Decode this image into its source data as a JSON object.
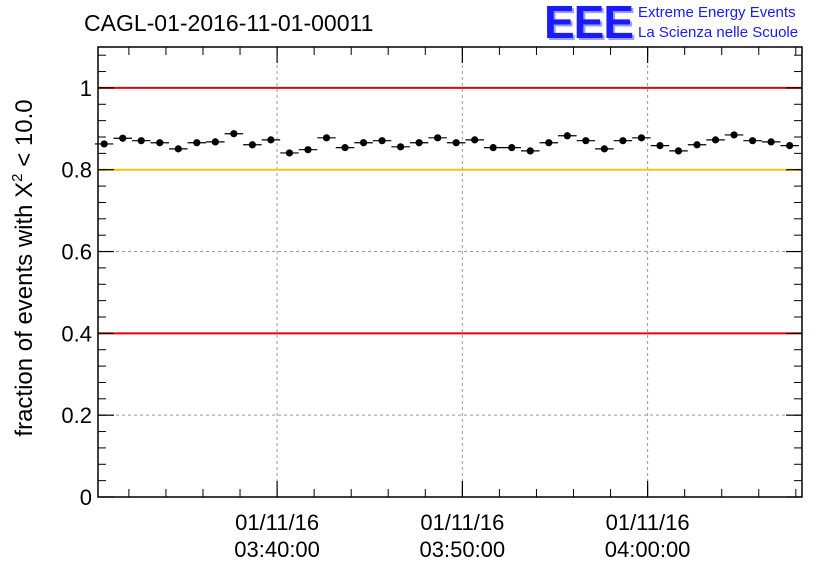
{
  "header": {
    "run_title": "CAGL-01-2016-11-01-00011",
    "logo": {
      "mark": "EEE",
      "line1": "Extreme Energy Events",
      "line2": "La Scienza nelle Scuole",
      "color": "#1a1aff"
    }
  },
  "chart_data": {
    "type": "scatter",
    "title": "CAGL-01-2016-11-01-00011",
    "xlabel": "",
    "ylabel": "fraction of events with X² < 10.0",
    "ylabel_parts": {
      "pre": "fraction of events with X",
      "sup": "2",
      "post": " < 10.0"
    },
    "x_axis": {
      "type": "time",
      "range": [
        "03:30:20",
        "04:08:20"
      ],
      "tick_labels": [
        {
          "time": "03:40:00",
          "date": "01/11/16"
        },
        {
          "time": "03:50:00",
          "date": "01/11/16"
        },
        {
          "time": "04:00:00",
          "date": "01/11/16"
        }
      ]
    },
    "ylim": [
      0,
      1.1
    ],
    "y_ticks": [
      "0",
      "0.2",
      "0.4",
      "0.6",
      "0.8",
      "1"
    ],
    "grid": true,
    "reference_lines": [
      {
        "y": 1.0,
        "color": "#e8000b"
      },
      {
        "y": 0.8,
        "color": "#ffc400"
      },
      {
        "y": 0.4,
        "color": "#e8000b"
      }
    ],
    "series": [
      {
        "marker_color": "#000000",
        "points": [
          {
            "x": "03:30:40",
            "y": 0.863
          },
          {
            "x": "03:31:40",
            "y": 0.877
          },
          {
            "x": "03:32:40",
            "y": 0.871
          },
          {
            "x": "03:33:40",
            "y": 0.866
          },
          {
            "x": "03:34:40",
            "y": 0.851
          },
          {
            "x": "03:35:40",
            "y": 0.866
          },
          {
            "x": "03:36:40",
            "y": 0.868
          },
          {
            "x": "03:37:40",
            "y": 0.888
          },
          {
            "x": "03:38:40",
            "y": 0.861
          },
          {
            "x": "03:39:40",
            "y": 0.873
          },
          {
            "x": "03:40:40",
            "y": 0.841
          },
          {
            "x": "03:41:40",
            "y": 0.849
          },
          {
            "x": "03:42:40",
            "y": 0.878
          },
          {
            "x": "03:43:40",
            "y": 0.854
          },
          {
            "x": "03:44:40",
            "y": 0.866
          },
          {
            "x": "03:45:40",
            "y": 0.871
          },
          {
            "x": "03:46:40",
            "y": 0.856
          },
          {
            "x": "03:47:40",
            "y": 0.866
          },
          {
            "x": "03:48:40",
            "y": 0.878
          },
          {
            "x": "03:49:40",
            "y": 0.866
          },
          {
            "x": "03:50:40",
            "y": 0.873
          },
          {
            "x": "03:51:40",
            "y": 0.854
          },
          {
            "x": "03:52:40",
            "y": 0.854
          },
          {
            "x": "03:53:40",
            "y": 0.846
          },
          {
            "x": "03:54:40",
            "y": 0.866
          },
          {
            "x": "03:55:40",
            "y": 0.883
          },
          {
            "x": "03:56:40",
            "y": 0.871
          },
          {
            "x": "03:57:40",
            "y": 0.851
          },
          {
            "x": "03:58:40",
            "y": 0.871
          },
          {
            "x": "03:59:40",
            "y": 0.878
          },
          {
            "x": "04:00:40",
            "y": 0.859
          },
          {
            "x": "04:01:40",
            "y": 0.846
          },
          {
            "x": "04:02:40",
            "y": 0.861
          },
          {
            "x": "04:03:40",
            "y": 0.873
          },
          {
            "x": "04:04:40",
            "y": 0.885
          },
          {
            "x": "04:05:40",
            "y": 0.871
          },
          {
            "x": "04:06:40",
            "y": 0.868
          },
          {
            "x": "04:07:40",
            "y": 0.859
          }
        ]
      }
    ]
  }
}
